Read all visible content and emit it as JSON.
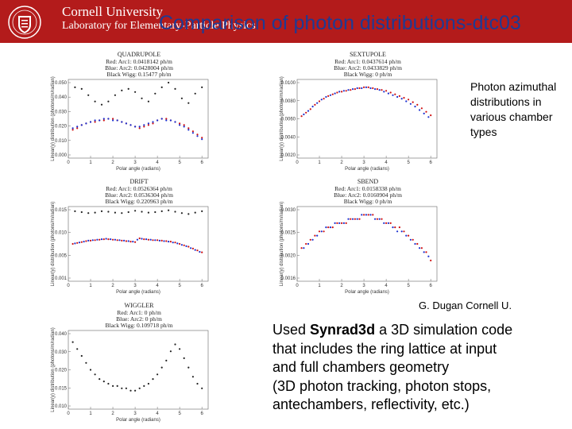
{
  "header": {
    "university": "Cornell University",
    "lab": "Laboratory for Elementary-Particle Physics",
    "title": "Comparison of photon distributions-dtc03",
    "colors": {
      "bar": "#b31b1b",
      "title": "#1f3a93"
    }
  },
  "side_note": "Photon azimuthal distributions in various chamber types",
  "credit": "G. Dugan Cornell U.",
  "body": {
    "line1_prefix": "Used ",
    "line1_bold": "Synrad3d",
    "line1_suffix": " a 3D simulation code",
    "line2": "that includes the ring lattice at input",
    "line3": "and full chambers geometry",
    "line4": "(3D photon tracking, photon stops,",
    "line5": "antechambers, reflectivity, etc.)"
  },
  "panel_common": {
    "xlabel": "Polar angle (radians)",
    "ylabel": "Linear(y) distribution (photons/m/radian)",
    "xticks": [
      "0",
      "1",
      "2",
      "3",
      "4",
      "5",
      "6"
    ]
  },
  "chart_data": [
    {
      "type": "scatter",
      "title": "QUADRUPOLE",
      "info": [
        "Red: Arc1: 0.0418142 ph/m",
        "Blue: Arc2: 0.0428004 ph/m",
        "Black Wigg: 0.15477 ph/m"
      ],
      "xlim": [
        0,
        6.28
      ],
      "ylim": [
        0.0,
        0.05
      ],
      "yticks": [
        "0.050",
        "0.040",
        "0.030",
        "0.020",
        "0.010",
        "0.000"
      ],
      "series": [
        {
          "color": "#d01010",
          "x": [
            0.2,
            0.4,
            0.6,
            0.8,
            1.0,
            1.2,
            1.4,
            1.6,
            1.8,
            2.0,
            2.2,
            2.4,
            2.6,
            2.8,
            3.0,
            3.2,
            3.4,
            3.6,
            3.8,
            4.0,
            4.2,
            4.4,
            4.6,
            4.8,
            5.0,
            5.2,
            5.4,
            5.6,
            5.8,
            6.0
          ],
          "y": [
            0.018,
            0.019,
            0.021,
            0.022,
            0.023,
            0.023,
            0.024,
            0.024,
            0.025,
            0.025,
            0.024,
            0.023,
            0.022,
            0.021,
            0.02,
            0.019,
            0.02,
            0.021,
            0.022,
            0.024,
            0.025,
            0.025,
            0.024,
            0.023,
            0.022,
            0.021,
            0.019,
            0.017,
            0.015,
            0.013
          ]
        },
        {
          "color": "#1a2fd0",
          "x": [
            0.2,
            0.4,
            0.6,
            0.8,
            1.0,
            1.2,
            1.4,
            1.6,
            1.8,
            2.0,
            2.2,
            2.4,
            2.6,
            2.8,
            3.0,
            3.2,
            3.4,
            3.6,
            3.8,
            4.0,
            4.2,
            4.4,
            4.6,
            4.8,
            5.0,
            5.2,
            5.4,
            5.6,
            5.8,
            6.0
          ],
          "y": [
            0.019,
            0.02,
            0.021,
            0.022,
            0.023,
            0.024,
            0.024,
            0.025,
            0.025,
            0.024,
            0.024,
            0.023,
            0.022,
            0.021,
            0.02,
            0.02,
            0.021,
            0.022,
            0.023,
            0.024,
            0.025,
            0.024,
            0.024,
            0.023,
            0.021,
            0.02,
            0.018,
            0.016,
            0.014,
            0.012
          ]
        },
        {
          "color": "#222222",
          "x": [
            0.3,
            0.6,
            0.9,
            1.2,
            1.5,
            1.8,
            2.1,
            2.4,
            2.7,
            3.0,
            3.3,
            3.6,
            3.9,
            4.2,
            4.5,
            4.8,
            5.1,
            5.4,
            5.7,
            6.0
          ],
          "y": [
            0.045,
            0.044,
            0.04,
            0.036,
            0.034,
            0.036,
            0.04,
            0.043,
            0.044,
            0.042,
            0.038,
            0.036,
            0.041,
            0.045,
            0.048,
            0.044,
            0.038,
            0.035,
            0.041,
            0.045
          ]
        }
      ]
    },
    {
      "type": "scatter",
      "title": "SEXTUPOLE",
      "info": [
        "Red: Arc1: 0.0437614 ph/m",
        "Blue: Arc2: 0.0433829 ph/m",
        "Black Wigg: 0 ph/m"
      ],
      "xlim": [
        0,
        6.28
      ],
      "ylim": [
        0.002,
        0.011
      ],
      "yticks": [
        "0.0100",
        "0.0080",
        "0.0060",
        "0.0040",
        "0.0020"
      ],
      "series": [
        {
          "color": "#d01010",
          "x": [
            0.2,
            0.4,
            0.6,
            0.8,
            1.0,
            1.2,
            1.4,
            1.6,
            1.8,
            2.0,
            2.2,
            2.4,
            2.6,
            2.8,
            3.0,
            3.2,
            3.4,
            3.6,
            3.8,
            4.0,
            4.2,
            4.4,
            4.6,
            4.8,
            5.0,
            5.2,
            5.4,
            5.6,
            5.8,
            6.0
          ],
          "y": [
            0.0068,
            0.0072,
            0.0076,
            0.0081,
            0.0085,
            0.0088,
            0.0091,
            0.0093,
            0.0095,
            0.0096,
            0.0097,
            0.0098,
            0.0099,
            0.01,
            0.0101,
            0.0101,
            0.01,
            0.0099,
            0.0098,
            0.0097,
            0.0095,
            0.0093,
            0.0091,
            0.0089,
            0.0087,
            0.0084,
            0.0081,
            0.0077,
            0.0073,
            0.0069
          ]
        },
        {
          "color": "#1a2fd0",
          "x": [
            0.3,
            0.5,
            0.7,
            0.9,
            1.1,
            1.3,
            1.5,
            1.7,
            1.9,
            2.1,
            2.3,
            2.5,
            2.7,
            2.9,
            3.1,
            3.3,
            3.5,
            3.7,
            3.9,
            4.1,
            4.3,
            4.5,
            4.7,
            4.9,
            5.1,
            5.3,
            5.5,
            5.7,
            5.9
          ],
          "y": [
            0.007,
            0.0074,
            0.0079,
            0.0083,
            0.0087,
            0.009,
            0.0092,
            0.0094,
            0.0096,
            0.0097,
            0.0098,
            0.0099,
            0.01,
            0.01,
            0.0101,
            0.01,
            0.0099,
            0.0098,
            0.0096,
            0.0094,
            0.0092,
            0.009,
            0.0088,
            0.0085,
            0.0082,
            0.0079,
            0.0075,
            0.0071,
            0.0067
          ]
        }
      ]
    },
    {
      "type": "scatter",
      "title": "DRIFT",
      "info": [
        "Red: Arc1: 0.0526364 ph/m",
        "Blue: Arc2: 0.0536304 ph/m",
        "Black Wigg: 0.220963 ph/m"
      ],
      "xlim": [
        0,
        6.28
      ],
      "ylim": [
        0.0,
        0.016
      ],
      "yticks": [
        "0.015",
        "0.010",
        "0.005",
        "0.001"
      ],
      "series": [
        {
          "color": "#d01010",
          "x": [
            0.2,
            0.4,
            0.6,
            0.8,
            1.0,
            1.2,
            1.4,
            1.6,
            1.8,
            2.0,
            2.2,
            2.4,
            2.6,
            2.8,
            3.0,
            3.2,
            3.4,
            3.6,
            3.8,
            4.0,
            4.2,
            4.4,
            4.6,
            4.8,
            5.0,
            5.2,
            5.4,
            5.6,
            5.8,
            6.0
          ],
          "y": [
            0.008,
            0.0082,
            0.0084,
            0.0086,
            0.0087,
            0.0088,
            0.0089,
            0.009,
            0.009,
            0.0089,
            0.0088,
            0.0087,
            0.0086,
            0.0085,
            0.0084,
            0.0092,
            0.009,
            0.0089,
            0.0088,
            0.0088,
            0.0087,
            0.0086,
            0.0085,
            0.0083,
            0.008,
            0.0077,
            0.0074,
            0.007,
            0.0066,
            0.0062
          ]
        },
        {
          "color": "#1a2fd0",
          "x": [
            0.3,
            0.5,
            0.7,
            0.9,
            1.1,
            1.3,
            1.5,
            1.7,
            1.9,
            2.1,
            2.3,
            2.5,
            2.7,
            2.9,
            3.1,
            3.3,
            3.5,
            3.7,
            3.9,
            4.1,
            4.3,
            4.5,
            4.7,
            4.9,
            5.1,
            5.3,
            5.5,
            5.7,
            5.9
          ],
          "y": [
            0.0081,
            0.0083,
            0.0085,
            0.0087,
            0.0088,
            0.0089,
            0.009,
            0.0091,
            0.009,
            0.0089,
            0.0088,
            0.0087,
            0.0086,
            0.0085,
            0.0089,
            0.0091,
            0.009,
            0.0089,
            0.0088,
            0.0087,
            0.0086,
            0.0085,
            0.0083,
            0.0081,
            0.0078,
            0.0075,
            0.0071,
            0.0067,
            0.0063
          ]
        },
        {
          "color": "#222222",
          "x": [
            0.3,
            0.6,
            0.9,
            1.2,
            1.5,
            1.8,
            2.1,
            2.4,
            2.7,
            3.0,
            3.3,
            3.6,
            3.9,
            4.2,
            4.5,
            4.8,
            5.1,
            5.4,
            5.7,
            6.0
          ],
          "y": [
            0.015,
            0.0148,
            0.0146,
            0.0147,
            0.015,
            0.0149,
            0.0147,
            0.0146,
            0.0148,
            0.0151,
            0.0149,
            0.0147,
            0.0148,
            0.015,
            0.0152,
            0.0149,
            0.0146,
            0.0144,
            0.0147,
            0.015
          ]
        }
      ]
    },
    {
      "type": "scatter",
      "title": "SBEND",
      "info": [
        "Red: Arc1: 0.0158338 ph/m",
        "Blue: Arc2: 0.0160904 ph/m",
        "Black Wigg: 0 ph/m"
      ],
      "xlim": [
        0,
        6.28
      ],
      "ylim": [
        0.0014,
        0.0032
      ],
      "yticks": [
        "0.0030",
        "0.0025",
        "0.0020",
        "0.0016"
      ],
      "series": [
        {
          "color": "#d01010",
          "x": [
            0.2,
            0.4,
            0.6,
            0.8,
            1.0,
            1.2,
            1.4,
            1.6,
            1.8,
            2.0,
            2.2,
            2.4,
            2.6,
            2.8,
            3.0,
            3.2,
            3.4,
            3.6,
            3.8,
            4.0,
            4.2,
            4.4,
            4.6,
            4.8,
            5.0,
            5.2,
            5.4,
            5.6,
            5.8,
            6.0
          ],
          "y": [
            0.0022,
            0.0023,
            0.0024,
            0.0025,
            0.0026,
            0.0026,
            0.0027,
            0.0027,
            0.0028,
            0.0028,
            0.0028,
            0.0029,
            0.0029,
            0.0029,
            0.003,
            0.003,
            0.003,
            0.0029,
            0.0029,
            0.0028,
            0.0028,
            0.0027,
            0.0027,
            0.0026,
            0.0025,
            0.0024,
            0.0023,
            0.0022,
            0.0021,
            0.0019
          ]
        },
        {
          "color": "#1a2fd0",
          "x": [
            0.3,
            0.5,
            0.7,
            0.9,
            1.1,
            1.3,
            1.5,
            1.7,
            1.9,
            2.1,
            2.3,
            2.5,
            2.7,
            2.9,
            3.1,
            3.3,
            3.5,
            3.7,
            3.9,
            4.1,
            4.3,
            4.5,
            4.7,
            4.9,
            5.1,
            5.3,
            5.5,
            5.7,
            5.9
          ],
          "y": [
            0.0022,
            0.0023,
            0.0024,
            0.0025,
            0.0026,
            0.0027,
            0.0027,
            0.0028,
            0.0028,
            0.0028,
            0.0029,
            0.0029,
            0.0029,
            0.003,
            0.003,
            0.003,
            0.0029,
            0.0029,
            0.0028,
            0.0028,
            0.0027,
            0.0026,
            0.0026,
            0.0025,
            0.0024,
            0.0023,
            0.0022,
            0.0021,
            0.002
          ]
        }
      ]
    },
    {
      "type": "scatter",
      "title": "WIGGLER",
      "info": [
        "Red: Arc1: 0 ph/m",
        "Blue: Arc2: 0 ph/m",
        "Black Wigg: 0.109718 ph/m"
      ],
      "xlim": [
        0,
        6.28
      ],
      "ylim": [
        0.008,
        0.042
      ],
      "yticks": [
        "0.040",
        "0.030",
        "0.020",
        "0.015",
        "0.010"
      ],
      "series": [
        {
          "color": "#222222",
          "x": [
            0.2,
            0.4,
            0.6,
            0.8,
            1.0,
            1.2,
            1.4,
            1.6,
            1.8,
            2.0,
            2.2,
            2.4,
            2.6,
            2.8,
            3.0,
            3.2,
            3.4,
            3.6,
            3.8,
            4.0,
            4.2,
            4.4,
            4.6,
            4.8,
            5.0,
            5.2,
            5.4,
            5.6,
            5.8,
            6.0
          ],
          "y": [
            0.037,
            0.034,
            0.031,
            0.028,
            0.025,
            0.023,
            0.021,
            0.02,
            0.019,
            0.018,
            0.018,
            0.017,
            0.017,
            0.016,
            0.016,
            0.017,
            0.018,
            0.019,
            0.021,
            0.023,
            0.026,
            0.029,
            0.033,
            0.036,
            0.034,
            0.03,
            0.026,
            0.022,
            0.019,
            0.017
          ]
        }
      ]
    }
  ]
}
